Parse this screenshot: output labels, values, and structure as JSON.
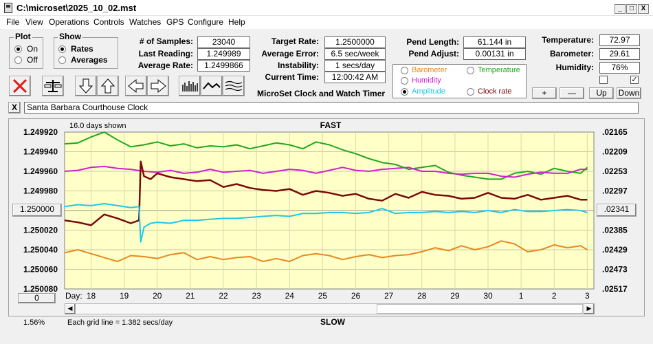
{
  "window": {
    "title": "C:\\microset\\2025_10_02.mst",
    "minimize": "_",
    "maximize": "□",
    "close": "X"
  },
  "menu": [
    "File",
    "View",
    "Operations",
    "Controls",
    "Watches",
    "GPS",
    "Configure",
    "Help"
  ],
  "plot_group": {
    "label": "Plot",
    "options": [
      "On",
      "Off"
    ],
    "selected": "On"
  },
  "show_group": {
    "label": "Show",
    "options": [
      "Rates",
      "Averages"
    ],
    "selected": "Rates"
  },
  "stats": {
    "samples_label": "# of Samples:",
    "samples": "23040",
    "last_reading_label": "Last Reading:",
    "last_reading": "1.249989",
    "avg_rate_label": "Average Rate:",
    "avg_rate": "1.2499866"
  },
  "target": {
    "target_rate_label": "Target Rate:",
    "target_rate": "1.2500000",
    "avg_error_label": "Average Error:",
    "avg_error": "6.5 sec/week",
    "instability_label": "Instability:",
    "instability": "1 secs/day",
    "current_time_label": "Current Time:",
    "current_time": "12:00:42 AM",
    "subtitle": "MicroSet Clock and Watch Timer"
  },
  "pendulum": {
    "length_label": "Pend Length:",
    "length": "61.144 in",
    "adjust_label": "Pend Adjust:",
    "adjust": "0.00131 in"
  },
  "plot_select": {
    "options": [
      {
        "label": "Barometer",
        "color": "#e8871e",
        "selected": false
      },
      {
        "label": "Temperature",
        "color": "#1fa81f",
        "selected": false
      },
      {
        "label": "Humidity",
        "color": "#d020d0",
        "selected": false
      },
      {
        "label": "Amplitude",
        "color": "#1ec8e8",
        "selected": true
      },
      {
        "label": "Clock rate",
        "color": "#7a0a0a",
        "selected": false
      }
    ]
  },
  "environment": {
    "temperature_label": "Temperature:",
    "temperature": "72.97",
    "barometer_label": "Barometer:",
    "barometer": "29.61",
    "humidity_label": "Humidity:",
    "humidity": "76%",
    "checkbox1": false,
    "checkbox2": true
  },
  "zoom_buttons": {
    "plus": "+",
    "minus": "—",
    "up": "Up",
    "down": "Down"
  },
  "note": {
    "close": "X",
    "text": "Santa Barbara Courthouse Clock"
  },
  "chart_data": {
    "type": "line",
    "top_label": "FAST",
    "bottom_label": "SLOW",
    "days_shown": "16.0 days shown",
    "grid_note": "Each grid line = 1.382 secs/day",
    "left_percent": "1.56%",
    "x_axis_label": "Day:",
    "x_ticks": [
      "18",
      "19",
      "20",
      "21",
      "22",
      "23",
      "24",
      "25",
      "26",
      "27",
      "28",
      "29",
      "30",
      "1",
      "2",
      "3"
    ],
    "y_left_ticks": [
      "1.249920",
      "1.249940",
      "1.249960",
      "1.249980",
      "1.250000",
      "1.250020",
      "1.250040",
      "1.250060",
      "1.250080"
    ],
    "y_right_ticks": [
      ".02165",
      ".02209",
      ".02253",
      ".02297",
      ".02341",
      ".02385",
      ".02429",
      ".02473",
      ".02517"
    ],
    "y_left_button": "1.250000",
    "y_right_button": ".02341",
    "x_left_button": "0",
    "ylim": [
      1.24992,
      1.25008
    ],
    "xlim": [
      17.2,
      33.2
    ],
    "series": [
      {
        "name": "Temperature",
        "color": "#1fa81f",
        "x": [
          17.2,
          17.6,
          18.0,
          18.4,
          18.8,
          19.2,
          19.6,
          20.0,
          20.4,
          20.8,
          21.2,
          21.6,
          22.0,
          22.4,
          22.8,
          23.2,
          23.6,
          24.0,
          24.4,
          24.8,
          25.2,
          25.6,
          26.0,
          26.4,
          26.8,
          27.2,
          27.6,
          28.0,
          28.4,
          28.8,
          29.2,
          29.6,
          30.0,
          30.4,
          30.8,
          31.2,
          31.6,
          32.0,
          32.4,
          32.8,
          33.0
        ],
        "y": [
          1.249932,
          1.249931,
          1.249925,
          1.24992,
          1.249928,
          1.249935,
          1.249933,
          1.24993,
          1.249934,
          1.249932,
          1.249936,
          1.249934,
          1.249935,
          1.249933,
          1.249937,
          1.249934,
          1.249931,
          1.249933,
          1.249937,
          1.24993,
          1.249933,
          1.249938,
          1.249942,
          1.249947,
          1.249951,
          1.249953,
          1.249958,
          1.249956,
          1.249954,
          1.249961,
          1.249964,
          1.249966,
          1.249968,
          1.249968,
          1.249962,
          1.24996,
          1.249963,
          1.249957,
          1.24996,
          1.249962,
          1.249956
        ]
      },
      {
        "name": "Humidity",
        "color": "#d020d0",
        "x": [
          17.2,
          17.6,
          18.0,
          18.4,
          18.8,
          19.2,
          19.6,
          20.0,
          20.4,
          20.8,
          21.2,
          21.6,
          22.0,
          22.4,
          22.8,
          23.2,
          23.6,
          24.0,
          24.4,
          24.8,
          25.2,
          25.6,
          26.0,
          26.4,
          26.8,
          27.2,
          27.6,
          28.0,
          28.4,
          28.8,
          29.2,
          29.6,
          30.0,
          30.4,
          30.8,
          31.2,
          31.6,
          32.0,
          32.4,
          32.8,
          33.0
        ],
        "y": [
          1.24996,
          1.249959,
          1.249956,
          1.249955,
          1.249957,
          1.249958,
          1.24996,
          1.249961,
          1.249959,
          1.249962,
          1.249961,
          1.249958,
          1.249961,
          1.24996,
          1.249959,
          1.249962,
          1.24996,
          1.249958,
          1.249959,
          1.249962,
          1.249959,
          1.249956,
          1.249959,
          1.24996,
          1.249958,
          1.249957,
          1.249956,
          1.24996,
          1.24996,
          1.249962,
          1.249963,
          1.249962,
          1.249962,
          1.249965,
          1.249966,
          1.249963,
          1.249961,
          1.249962,
          1.249962,
          1.249958,
          1.249958
        ]
      },
      {
        "name": "Clock rate",
        "color": "#7a0a0a",
        "x": [
          17.2,
          17.6,
          18.0,
          18.4,
          18.8,
          19.2,
          19.45,
          19.5,
          19.6,
          19.8,
          20.0,
          20.4,
          20.8,
          21.2,
          21.6,
          22.0,
          22.4,
          22.8,
          23.2,
          23.6,
          24.0,
          24.4,
          24.8,
          25.2,
          25.6,
          26.0,
          26.4,
          26.8,
          27.2,
          27.6,
          28.0,
          28.4,
          28.8,
          29.2,
          29.6,
          30.0,
          30.4,
          30.8,
          31.2,
          31.6,
          32.0,
          32.4,
          32.8,
          33.0
        ],
        "y": [
          1.25001,
          1.250012,
          1.250015,
          1.250004,
          1.250008,
          1.250013,
          1.25001,
          1.24995,
          1.249965,
          1.249968,
          1.249962,
          1.249966,
          1.249968,
          1.24997,
          1.249969,
          1.249976,
          1.249973,
          1.249977,
          1.249979,
          1.24998,
          1.249978,
          1.249984,
          1.24998,
          1.249982,
          1.249985,
          1.249983,
          1.249988,
          1.24999,
          1.249983,
          1.249987,
          1.249981,
          1.249984,
          1.249985,
          1.249988,
          1.249987,
          1.249982,
          1.249987,
          1.249988,
          1.249984,
          1.249989,
          1.249987,
          1.249985,
          1.249989,
          1.249989
        ]
      },
      {
        "name": "Amplitude",
        "color": "#1ec8e8",
        "x": [
          17.2,
          17.6,
          18.0,
          18.4,
          18.8,
          19.2,
          19.45,
          19.5,
          19.6,
          19.8,
          20.0,
          20.4,
          20.8,
          21.2,
          21.6,
          22.0,
          22.4,
          22.8,
          23.2,
          23.6,
          24.0,
          24.4,
          24.8,
          25.2,
          25.6,
          26.0,
          26.4,
          26.8,
          27.2,
          27.6,
          28.0,
          28.4,
          28.8,
          29.2,
          29.6,
          30.0,
          30.4,
          30.8,
          31.2,
          31.6,
          32.0,
          32.4,
          32.8,
          33.0
        ],
        "y": [
          1.249996,
          1.249994,
          1.249995,
          1.249993,
          1.249995,
          1.249997,
          1.249996,
          1.250032,
          1.250017,
          1.250013,
          1.250012,
          1.250013,
          1.25001,
          1.25001,
          1.250009,
          1.250008,
          1.250008,
          1.250007,
          1.250006,
          1.250005,
          1.250006,
          1.250003,
          1.250003,
          1.250002,
          1.250002,
          1.250003,
          1.250002,
          1.249998,
          1.250003,
          1.250002,
          1.250002,
          1.250001,
          1.250002,
          1.250001,
          1.250002,
          1.25,
          1.250002,
          1.249999,
          1.250001,
          1.250001,
          1.25,
          1.249999,
          1.25,
          1.250002
        ]
      },
      {
        "name": "Barometer",
        "color": "#e8871e",
        "x": [
          17.2,
          17.6,
          18.0,
          18.4,
          18.8,
          19.2,
          19.6,
          20.0,
          20.4,
          20.8,
          21.2,
          21.6,
          22.0,
          22.4,
          22.8,
          23.2,
          23.6,
          24.0,
          24.4,
          24.8,
          25.2,
          25.6,
          26.0,
          26.4,
          26.8,
          27.2,
          27.6,
          28.0,
          28.4,
          28.8,
          29.2,
          29.6,
          30.0,
          30.4,
          30.8,
          31.2,
          31.6,
          32.0,
          32.4,
          32.8,
          33.0
        ],
        "y": [
          1.250043,
          1.25004,
          1.250044,
          1.250048,
          1.250052,
          1.250046,
          1.250047,
          1.250049,
          1.250045,
          1.250043,
          1.25005,
          1.250047,
          1.25005,
          1.250048,
          1.250047,
          1.250052,
          1.250049,
          1.250052,
          1.250046,
          1.250044,
          1.250046,
          1.25005,
          1.250047,
          1.250045,
          1.250048,
          1.250046,
          1.250045,
          1.250042,
          1.250038,
          1.250041,
          1.250036,
          1.25004,
          1.250037,
          1.250031,
          1.250034,
          1.250042,
          1.25004,
          1.250035,
          1.250038,
          1.250036,
          1.25004
        ]
      }
    ]
  }
}
